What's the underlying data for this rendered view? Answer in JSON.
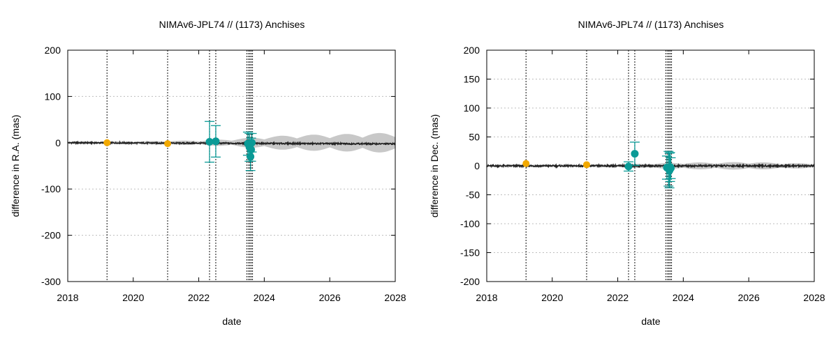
{
  "colors": {
    "model": "#222222",
    "uncertainty_band": "#c8c8c8",
    "orange_points": "#f2a900",
    "teal_points": "#0a9a96",
    "grid": "#bdbdbd"
  },
  "chart_data": [
    {
      "type": "scatter",
      "title": "NIMAv6-JPL74 // (1173) Anchises",
      "xlabel": "date",
      "ylabel": "difference in R.A. (mas)",
      "xlim": [
        2018,
        2028
      ],
      "ylim": [
        -300,
        200
      ],
      "xticks": [
        "2018",
        "2020",
        "2022",
        "2024",
        "2026",
        "2028"
      ],
      "yticks": [
        "200",
        "100",
        "0",
        "-100",
        "-200",
        "-300"
      ],
      "grid": true,
      "vlines": [
        2019.2,
        2021.05,
        2022.33,
        2022.52,
        2023.47,
        2023.52,
        2023.56,
        2023.6,
        2023.64
      ],
      "band_amplitude": [
        [
          2018,
          3
        ],
        [
          2020,
          3
        ],
        [
          2021,
          4
        ],
        [
          2022,
          5
        ],
        [
          2023,
          8
        ],
        [
          2024,
          13
        ],
        [
          2025,
          17
        ],
        [
          2026,
          18
        ],
        [
          2027,
          20
        ],
        [
          2028,
          22
        ]
      ],
      "series": [
        {
          "color": "orange",
          "points": [
            {
              "x": 2019.2,
              "y": 0,
              "err": 0
            },
            {
              "x": 2021.05,
              "y": -2,
              "err": 0
            }
          ]
        },
        {
          "color": "teal",
          "points": [
            {
              "x": 2022.33,
              "y": 2,
              "err": 44
            },
            {
              "x": 2022.52,
              "y": 3,
              "err": 34
            },
            {
              "x": 2023.5,
              "y": -2,
              "err": 25
            },
            {
              "x": 2023.55,
              "y": -10,
              "err": 30
            },
            {
              "x": 2023.58,
              "y": -30,
              "err": 30
            },
            {
              "x": 2023.6,
              "y": -15,
              "err": 25
            },
            {
              "x": 2023.62,
              "y": 0,
              "err": 20
            }
          ]
        }
      ]
    },
    {
      "type": "scatter",
      "title": "NIMAv6-JPL74 // (1173) Anchises",
      "xlabel": "date",
      "ylabel": "difference in Dec. (mas)",
      "xlim": [
        2018,
        2028
      ],
      "ylim": [
        -200,
        200
      ],
      "xticks": [
        "2018",
        "2020",
        "2022",
        "2024",
        "2026",
        "2028"
      ],
      "yticks": [
        "200",
        "150",
        "100",
        "50",
        "0",
        "-50",
        "-100",
        "-150",
        "-200"
      ],
      "grid": true,
      "vlines": [
        2019.2,
        2021.05,
        2022.33,
        2022.52,
        2023.47,
        2023.52,
        2023.56,
        2023.6,
        2023.64
      ],
      "band_amplitude": [
        [
          2018,
          2
        ],
        [
          2021,
          2
        ],
        [
          2022,
          3
        ],
        [
          2023,
          4
        ],
        [
          2024,
          6
        ],
        [
          2025,
          6
        ],
        [
          2026,
          7
        ],
        [
          2027,
          5
        ],
        [
          2028,
          4
        ]
      ],
      "series": [
        {
          "color": "orange",
          "points": [
            {
              "x": 2019.2,
              "y": 4,
              "err": 0
            },
            {
              "x": 2021.05,
              "y": 2,
              "err": 0
            }
          ]
        },
        {
          "color": "teal",
          "points": [
            {
              "x": 2022.33,
              "y": -1,
              "err": 8
            },
            {
              "x": 2022.52,
              "y": 21,
              "err": 20
            },
            {
              "x": 2023.5,
              "y": -3,
              "err": 20
            },
            {
              "x": 2023.55,
              "y": -5,
              "err": 30
            },
            {
              "x": 2023.58,
              "y": -8,
              "err": 30
            },
            {
              "x": 2023.6,
              "y": -2,
              "err": 25
            },
            {
              "x": 2023.62,
              "y": -4,
              "err": 18
            }
          ]
        }
      ]
    }
  ]
}
